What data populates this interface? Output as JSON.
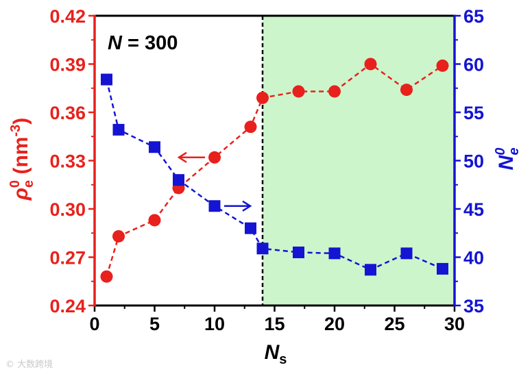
{
  "chart_data": {
    "type": "line",
    "annotation": "N = 300",
    "annotation_parts": {
      "var": "N",
      "rest": " = 300"
    },
    "xlabel": {
      "main": "N",
      "sub": "s"
    },
    "ylabel_left": {
      "greek": "ρ",
      "sub": "e",
      "sup": "0",
      "unit_open": " (nm",
      "unit_sup": "-3",
      "unit_close": ")"
    },
    "ylabel_right": {
      "main": "N",
      "sub": "e",
      "sup": "0"
    },
    "xlim": [
      0,
      30
    ],
    "ylim_left": [
      0.24,
      0.42
    ],
    "ylim_right": [
      35,
      65
    ],
    "x_ticks": [
      "0",
      "5",
      "10",
      "15",
      "20",
      "25",
      "30"
    ],
    "y_left_ticks": [
      "0.24",
      "0.27",
      "0.30",
      "0.33",
      "0.36",
      "0.39",
      "0.42"
    ],
    "y_right_ticks": [
      "35",
      "40",
      "45",
      "50",
      "55",
      "60",
      "65"
    ],
    "threshold_x": 14,
    "shaded_region": {
      "from": 14,
      "to": 30,
      "color": "#ccf5cc"
    },
    "colors": {
      "left": "#e8211c",
      "right": "#1414d2"
    },
    "series": [
      {
        "axis": "left",
        "marker": "circle",
        "x": [
          1,
          2,
          5,
          7,
          10,
          13,
          14,
          17,
          20,
          23,
          26,
          29
        ],
        "values": [
          0.258,
          0.283,
          0.293,
          0.313,
          0.332,
          0.351,
          0.369,
          0.373,
          0.373,
          0.39,
          0.374,
          0.389
        ]
      },
      {
        "axis": "right",
        "marker": "square",
        "x": [
          1,
          2,
          5,
          7,
          10,
          13,
          14,
          17,
          20,
          23,
          26,
          29
        ],
        "values": [
          58.4,
          53.2,
          51.4,
          48.0,
          45.3,
          43.0,
          40.9,
          40.5,
          40.4,
          38.7,
          40.4,
          38.8
        ]
      }
    ],
    "arrows": [
      {
        "series": "left",
        "direction": "left",
        "x": 10,
        "y": 0.332
      },
      {
        "series": "right",
        "direction": "right",
        "x": 10,
        "y": 45.3
      }
    ]
  },
  "watermark": "© 大数跨境"
}
